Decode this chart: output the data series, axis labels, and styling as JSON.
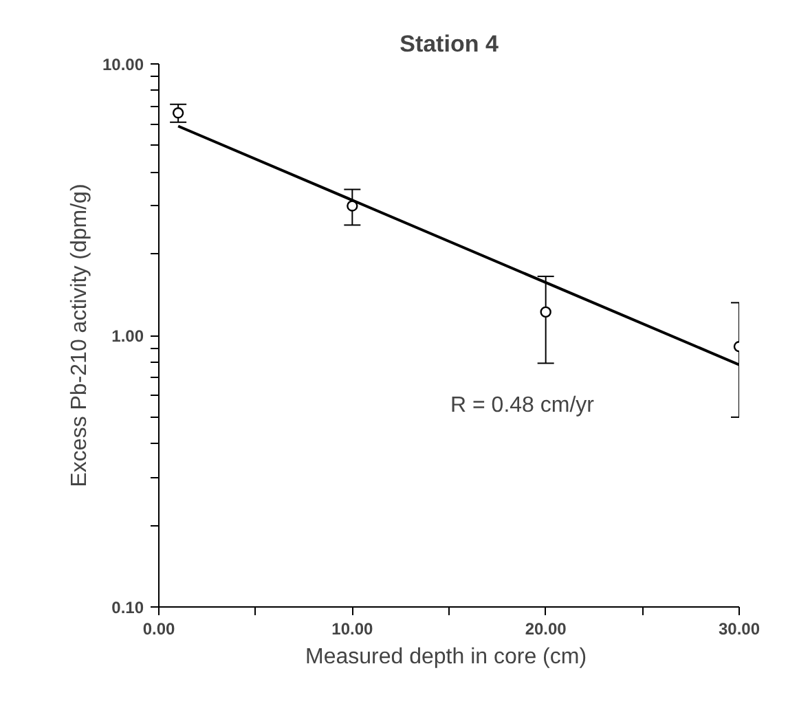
{
  "chart_data": {
    "type": "scatter",
    "title": "Station 4",
    "xlabel": "Measured depth in core  (cm)",
    "ylabel": "Excess Pb-210 activity (dpm/g)",
    "log": "y",
    "grid": false,
    "xlim": [
      0,
      30
    ],
    "xticks": [
      {
        "value": 0,
        "label": "0.00"
      },
      {
        "value": 5,
        "label": null
      },
      {
        "value": 10,
        "label": "10.00"
      },
      {
        "value": 15,
        "label": null
      },
      {
        "value": 20,
        "label": "20.00"
      },
      {
        "value": 25,
        "label": null
      },
      {
        "value": 30,
        "label": "30.00"
      }
    ],
    "ylim": [
      0.1,
      10
    ],
    "yticks": [
      {
        "value": 0.1,
        "label": "0.10"
      },
      {
        "value": 0.2,
        "label": null
      },
      {
        "value": 0.3,
        "label": null
      },
      {
        "value": 0.4,
        "label": null
      },
      {
        "value": 0.5,
        "label": null
      },
      {
        "value": 0.6,
        "label": null
      },
      {
        "value": 0.7,
        "label": null
      },
      {
        "value": 0.8,
        "label": null
      },
      {
        "value": 0.9,
        "label": null
      },
      {
        "value": 1,
        "label": "1.00"
      },
      {
        "value": 2,
        "label": null
      },
      {
        "value": 3,
        "label": null
      },
      {
        "value": 4,
        "label": null
      },
      {
        "value": 5,
        "label": null
      },
      {
        "value": 6,
        "label": null
      },
      {
        "value": 7,
        "label": null
      },
      {
        "value": 8,
        "label": null
      },
      {
        "value": 9,
        "label": null
      },
      {
        "value": 10,
        "label": "10.00"
      }
    ],
    "series": [
      {
        "marker": "circle",
        "color": "#000000",
        "x": [
          1,
          10,
          20,
          30
        ],
        "values": [
          6.6,
          3.0,
          1.22,
          0.91
        ],
        "errors": [
          0.5,
          0.45,
          0.43,
          0.41
        ]
      },
      {
        "type": "line",
        "marker": "none",
        "color": "#000000",
        "x": [
          1,
          30
        ],
        "values": [
          5.9,
          0.78
        ]
      }
    ],
    "annotations": [
      "R = 0.48 cm/yr"
    ]
  }
}
